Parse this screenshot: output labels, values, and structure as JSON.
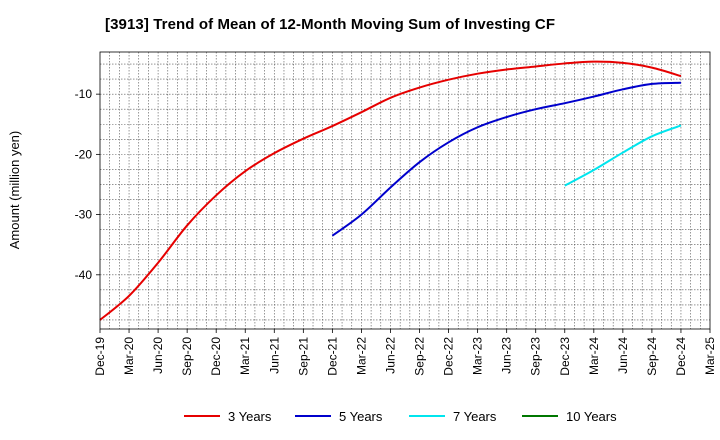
{
  "title": "[3913]  Trend of Mean of 12-Month Moving Sum of Investing CF",
  "chart_data": {
    "type": "line",
    "ylabel": "Amount (million yen)",
    "xlabel": "",
    "ylim": [
      -49,
      -3
    ],
    "yticks": [
      -10,
      -20,
      -30,
      -40
    ],
    "ytick_labels": [
      "-10",
      "-20",
      "-30",
      "-40"
    ],
    "x_categories": [
      "Dec-19",
      "Mar-20",
      "Jun-20",
      "Sep-20",
      "Dec-20",
      "Mar-21",
      "Jun-21",
      "Sep-21",
      "Dec-21",
      "Mar-22",
      "Jun-22",
      "Sep-22",
      "Dec-22",
      "Mar-23",
      "Jun-23",
      "Sep-23",
      "Dec-23",
      "Mar-24",
      "Jun-24",
      "Sep-24",
      "Dec-24",
      "Mar-25"
    ],
    "grid": "dotted, monthly vertical and horizontal lines",
    "legend_position": "bottom",
    "series": [
      {
        "name": "3 Years",
        "color": "#e60000",
        "points": [
          [
            "Dec-19",
            -47.5
          ],
          [
            "Mar-20",
            -43.5
          ],
          [
            "Jun-20",
            -38.0
          ],
          [
            "Sep-20",
            -31.8
          ],
          [
            "Dec-20",
            -26.8
          ],
          [
            "Mar-21",
            -22.8
          ],
          [
            "Jun-21",
            -19.8
          ],
          [
            "Sep-21",
            -17.4
          ],
          [
            "Dec-21",
            -15.3
          ],
          [
            "Mar-22",
            -13.0
          ],
          [
            "Jun-22",
            -10.6
          ],
          [
            "Sep-22",
            -8.9
          ],
          [
            "Dec-22",
            -7.6
          ],
          [
            "Mar-23",
            -6.6
          ],
          [
            "Jun-23",
            -5.9
          ],
          [
            "Sep-23",
            -5.4
          ],
          [
            "Dec-23",
            -4.9
          ],
          [
            "Mar-24",
            -4.6
          ],
          [
            "Jun-24",
            -4.8
          ],
          [
            "Sep-24",
            -5.6
          ],
          [
            "Dec-24",
            -7.0
          ]
        ]
      },
      {
        "name": "5 Years",
        "color": "#0000cc",
        "points": [
          [
            "Dec-21",
            -33.5
          ],
          [
            "Mar-22",
            -30.0
          ],
          [
            "Jun-22",
            -25.5
          ],
          [
            "Sep-22",
            -21.3
          ],
          [
            "Dec-22",
            -18.0
          ],
          [
            "Mar-23",
            -15.5
          ],
          [
            "Jun-23",
            -13.8
          ],
          [
            "Sep-23",
            -12.5
          ],
          [
            "Dec-23",
            -11.5
          ],
          [
            "Mar-24",
            -10.4
          ],
          [
            "Jun-24",
            -9.2
          ],
          [
            "Sep-24",
            -8.3
          ],
          [
            "Dec-24",
            -8.1
          ]
        ]
      },
      {
        "name": "7 Years",
        "color": "#00e5ee",
        "points": [
          [
            "Dec-23",
            -25.2
          ],
          [
            "Mar-24",
            -22.6
          ],
          [
            "Jun-24",
            -19.7
          ],
          [
            "Sep-24",
            -17.0
          ],
          [
            "Dec-24",
            -15.2
          ]
        ]
      },
      {
        "name": "10 Years",
        "color": "#007700",
        "points": []
      }
    ]
  }
}
